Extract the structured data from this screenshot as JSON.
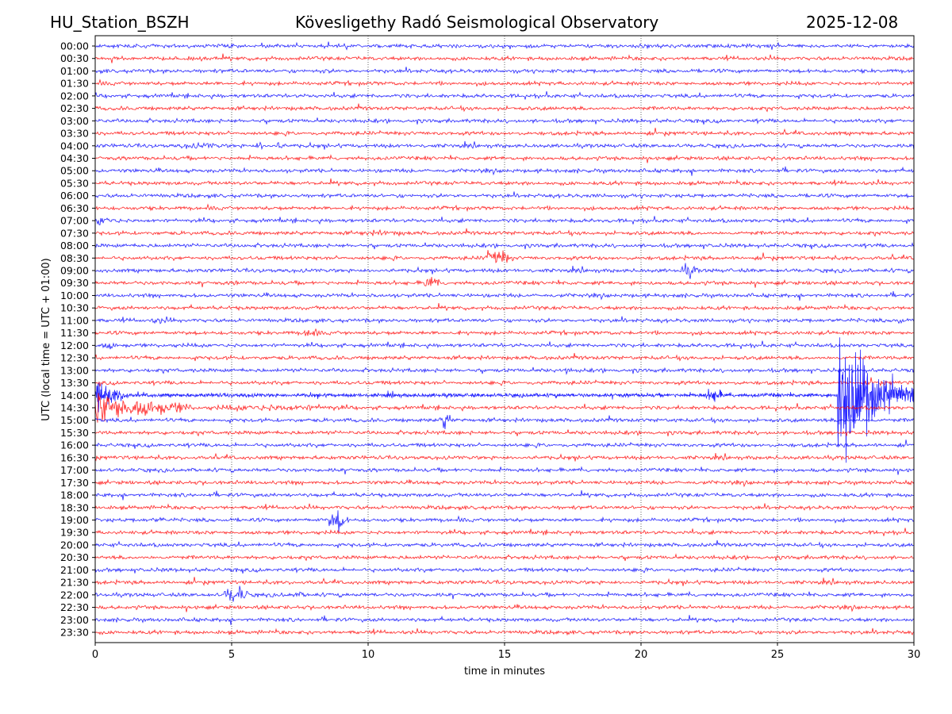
{
  "header": {
    "station": "HU_Station_BSZH",
    "observatory": "Kövesligethy Radó Seismological Observatory",
    "date": "2025-12-08"
  },
  "chart_data": {
    "type": "line",
    "subtype": "helicorder",
    "title": "Kövesligethy Radó Seismological Observatory",
    "xlabel": "time in minutes",
    "ylabel": "UTC (local time = UTC + 01:00)",
    "xlim": [
      0,
      30
    ],
    "x_ticks": [
      0,
      5,
      10,
      15,
      20,
      25,
      30
    ],
    "x_tick_labels": [
      "0",
      "5",
      "10",
      "15",
      "20",
      "25",
      "30"
    ],
    "grid": "vertical dotted at x ticks",
    "row_labels": [
      "00:00",
      "00:30",
      "01:00",
      "01:30",
      "02:00",
      "02:30",
      "03:00",
      "03:30",
      "04:00",
      "04:30",
      "05:00",
      "05:30",
      "06:00",
      "06:30",
      "07:00",
      "07:30",
      "08:00",
      "08:30",
      "09:00",
      "09:30",
      "10:00",
      "10:30",
      "11:00",
      "11:30",
      "12:00",
      "12:30",
      "13:00",
      "13:30",
      "14:00",
      "14:30",
      "15:00",
      "15:30",
      "16:00",
      "16:30",
      "17:00",
      "17:30",
      "18:00",
      "18:30",
      "19:00",
      "19:30",
      "20:00",
      "20:30",
      "21:00",
      "21:30",
      "22:00",
      "22:30",
      "23:00",
      "23:30"
    ],
    "series_colors": [
      "#0000ff",
      "#ff0000"
    ],
    "events": [
      {
        "row": "00:00",
        "start_min": 16.9,
        "duration_min": 0.4,
        "amplitude": 2
      },
      {
        "row": "01:00",
        "start_min": 8.2,
        "duration_min": 1.0,
        "amplitude": 3
      },
      {
        "row": "01:00",
        "start_min": 25.9,
        "duration_min": 0.8,
        "amplitude": 2.5
      },
      {
        "row": "04:00",
        "start_min": 2.7,
        "duration_min": 4.6,
        "amplitude": 3.5
      },
      {
        "row": "04:00",
        "start_min": 5.9,
        "duration_min": 0.5,
        "amplitude": 7
      },
      {
        "row": "04:00",
        "start_min": 6.6,
        "duration_min": 0.5,
        "amplitude": 7
      },
      {
        "row": "07:00",
        "start_min": 0.05,
        "duration_min": 1.3,
        "amplitude": 7
      },
      {
        "row": "07:30",
        "start_min": 9.0,
        "duration_min": 6.0,
        "amplitude": 3
      },
      {
        "row": "08:30",
        "start_min": 14.2,
        "duration_min": 2.2,
        "amplitude": 9
      },
      {
        "row": "09:00",
        "start_min": 21.4,
        "duration_min": 1.4,
        "amplitude": 7
      },
      {
        "row": "09:30",
        "start_min": 5.1,
        "duration_min": 0.3,
        "amplitude": 5
      },
      {
        "row": "09:30",
        "start_min": 12.0,
        "duration_min": 1.4,
        "amplitude": 9
      },
      {
        "row": "11:00",
        "start_min": 1.8,
        "duration_min": 2.5,
        "amplitude": 4
      },
      {
        "row": "11:00",
        "start_min": 29.3,
        "duration_min": 0.7,
        "amplitude": 6
      },
      {
        "row": "11:30",
        "start_min": 7.6,
        "duration_min": 1.2,
        "amplitude": 7
      },
      {
        "row": "12:00",
        "start_min": 0.2,
        "duration_min": 1.2,
        "amplitude": 5
      },
      {
        "row": "13:00",
        "start_min": 17.2,
        "duration_min": 0.3,
        "amplitude": 7
      },
      {
        "row": "14:00",
        "start_min": 0.0,
        "duration_min": 1.2,
        "amplitude": 20
      },
      {
        "row": "14:00",
        "start_min": 22.3,
        "duration_min": 1.5,
        "amplitude": 7
      },
      {
        "row": "14:00",
        "start_min": 27.2,
        "duration_min": 2.8,
        "amplitude": 105
      },
      {
        "row": "14:30",
        "start_min": 0.0,
        "duration_min": 3.5,
        "amplitude": 22
      },
      {
        "row": "14:30",
        "start_min": 3.5,
        "duration_min": 13.0,
        "amplitude": 4
      },
      {
        "row": "15:00",
        "start_min": 12.6,
        "duration_min": 1.0,
        "amplitude": 11
      },
      {
        "row": "19:00",
        "start_min": 1.8,
        "duration_min": 2.2,
        "amplitude": 3
      },
      {
        "row": "19:00",
        "start_min": 8.5,
        "duration_min": 1.5,
        "amplitude": 13
      },
      {
        "row": "22:00",
        "start_min": 4.7,
        "duration_min": 1.8,
        "amplitude": 11
      },
      {
        "row": "22:00",
        "start_min": 6.5,
        "duration_min": 3.5,
        "amplitude": 3
      }
    ]
  }
}
